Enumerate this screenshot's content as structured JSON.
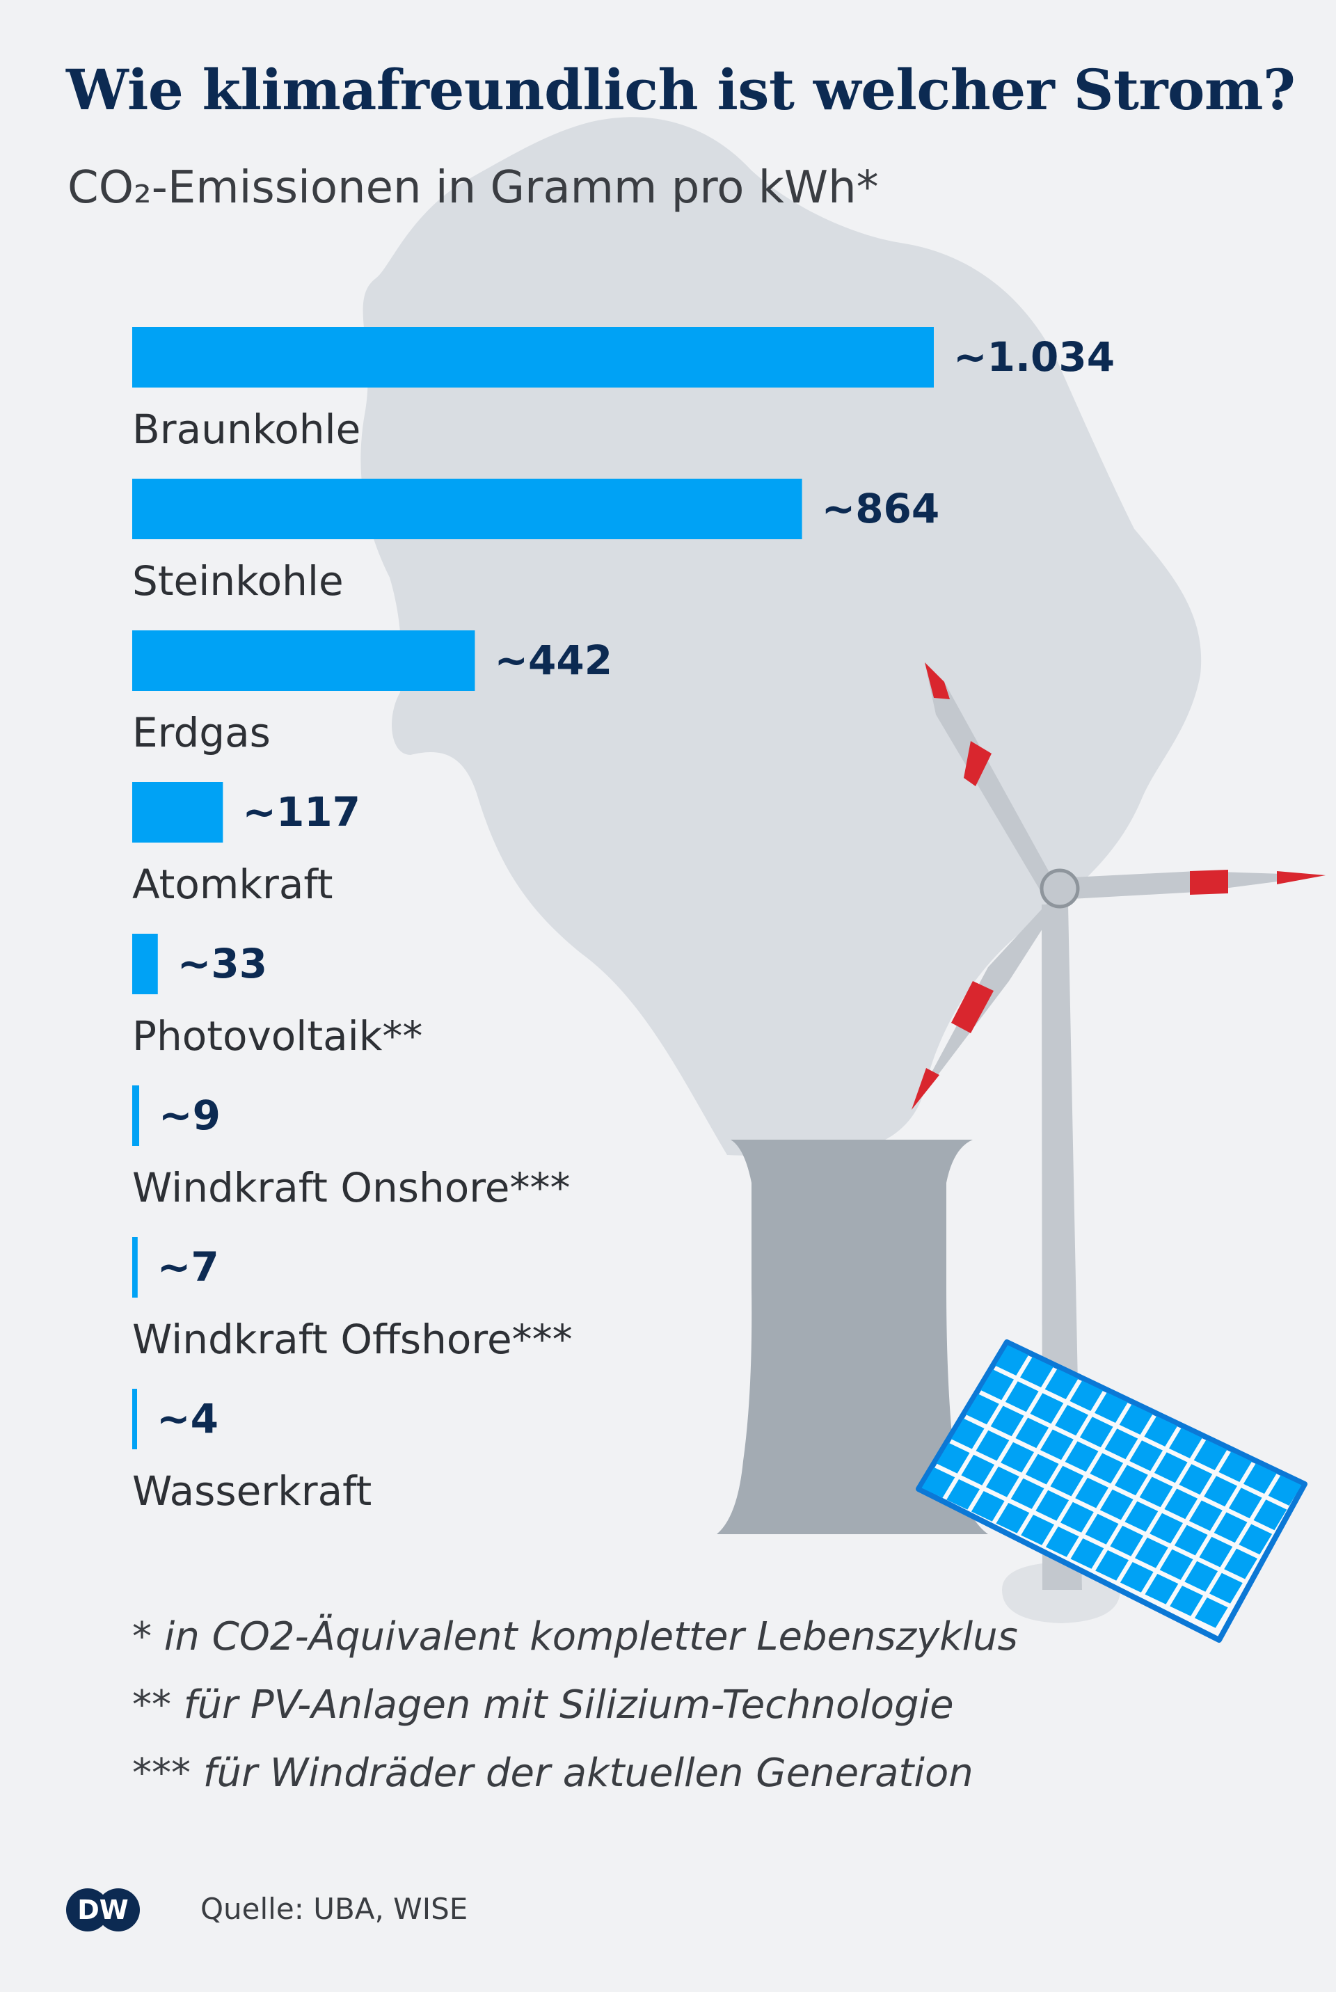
{
  "title": "Wie klimafreundlich ist welcher Strom?",
  "subtitle": "CO₂-Emissionen in Gramm pro kWh*",
  "colors": {
    "bar": "#00a2f5",
    "title": "#0c2a52",
    "text": "#3a3d42",
    "background": "#f1f2f4",
    "smoke": "#d9dde2",
    "tower": "#a3abb3"
  },
  "chart_data": {
    "type": "bar",
    "orientation": "horizontal",
    "title": "Wie klimafreundlich ist welcher Strom?",
    "subtitle": "CO₂-Emissionen in Gramm pro kWh*",
    "categories": [
      "Braunkohle",
      "Steinkohle",
      "Erdgas",
      "Atomkraft",
      "Photovoltaik**",
      "Windkraft Onshore***",
      "Windkraft Offshore***",
      "Wasserkraft"
    ],
    "values": [
      1034,
      864,
      442,
      117,
      33,
      9,
      7,
      4
    ],
    "value_labels": [
      "~1.034",
      "~864",
      "~442",
      "~117",
      "~33",
      "~9",
      "~7",
      "~4"
    ],
    "unit": "Gramm pro kWh",
    "xlim": [
      0,
      1034
    ],
    "grid": false,
    "legend": "none"
  },
  "footnotes": [
    "* in CO2-Äquivalent kompletter Lebenszyklus",
    "** für PV-Anlagen mit Silizium-Technologie",
    "*** für Windräder der aktuellen Generation"
  ],
  "source": "Quelle: UBA, WISE",
  "logo_text": "DW"
}
